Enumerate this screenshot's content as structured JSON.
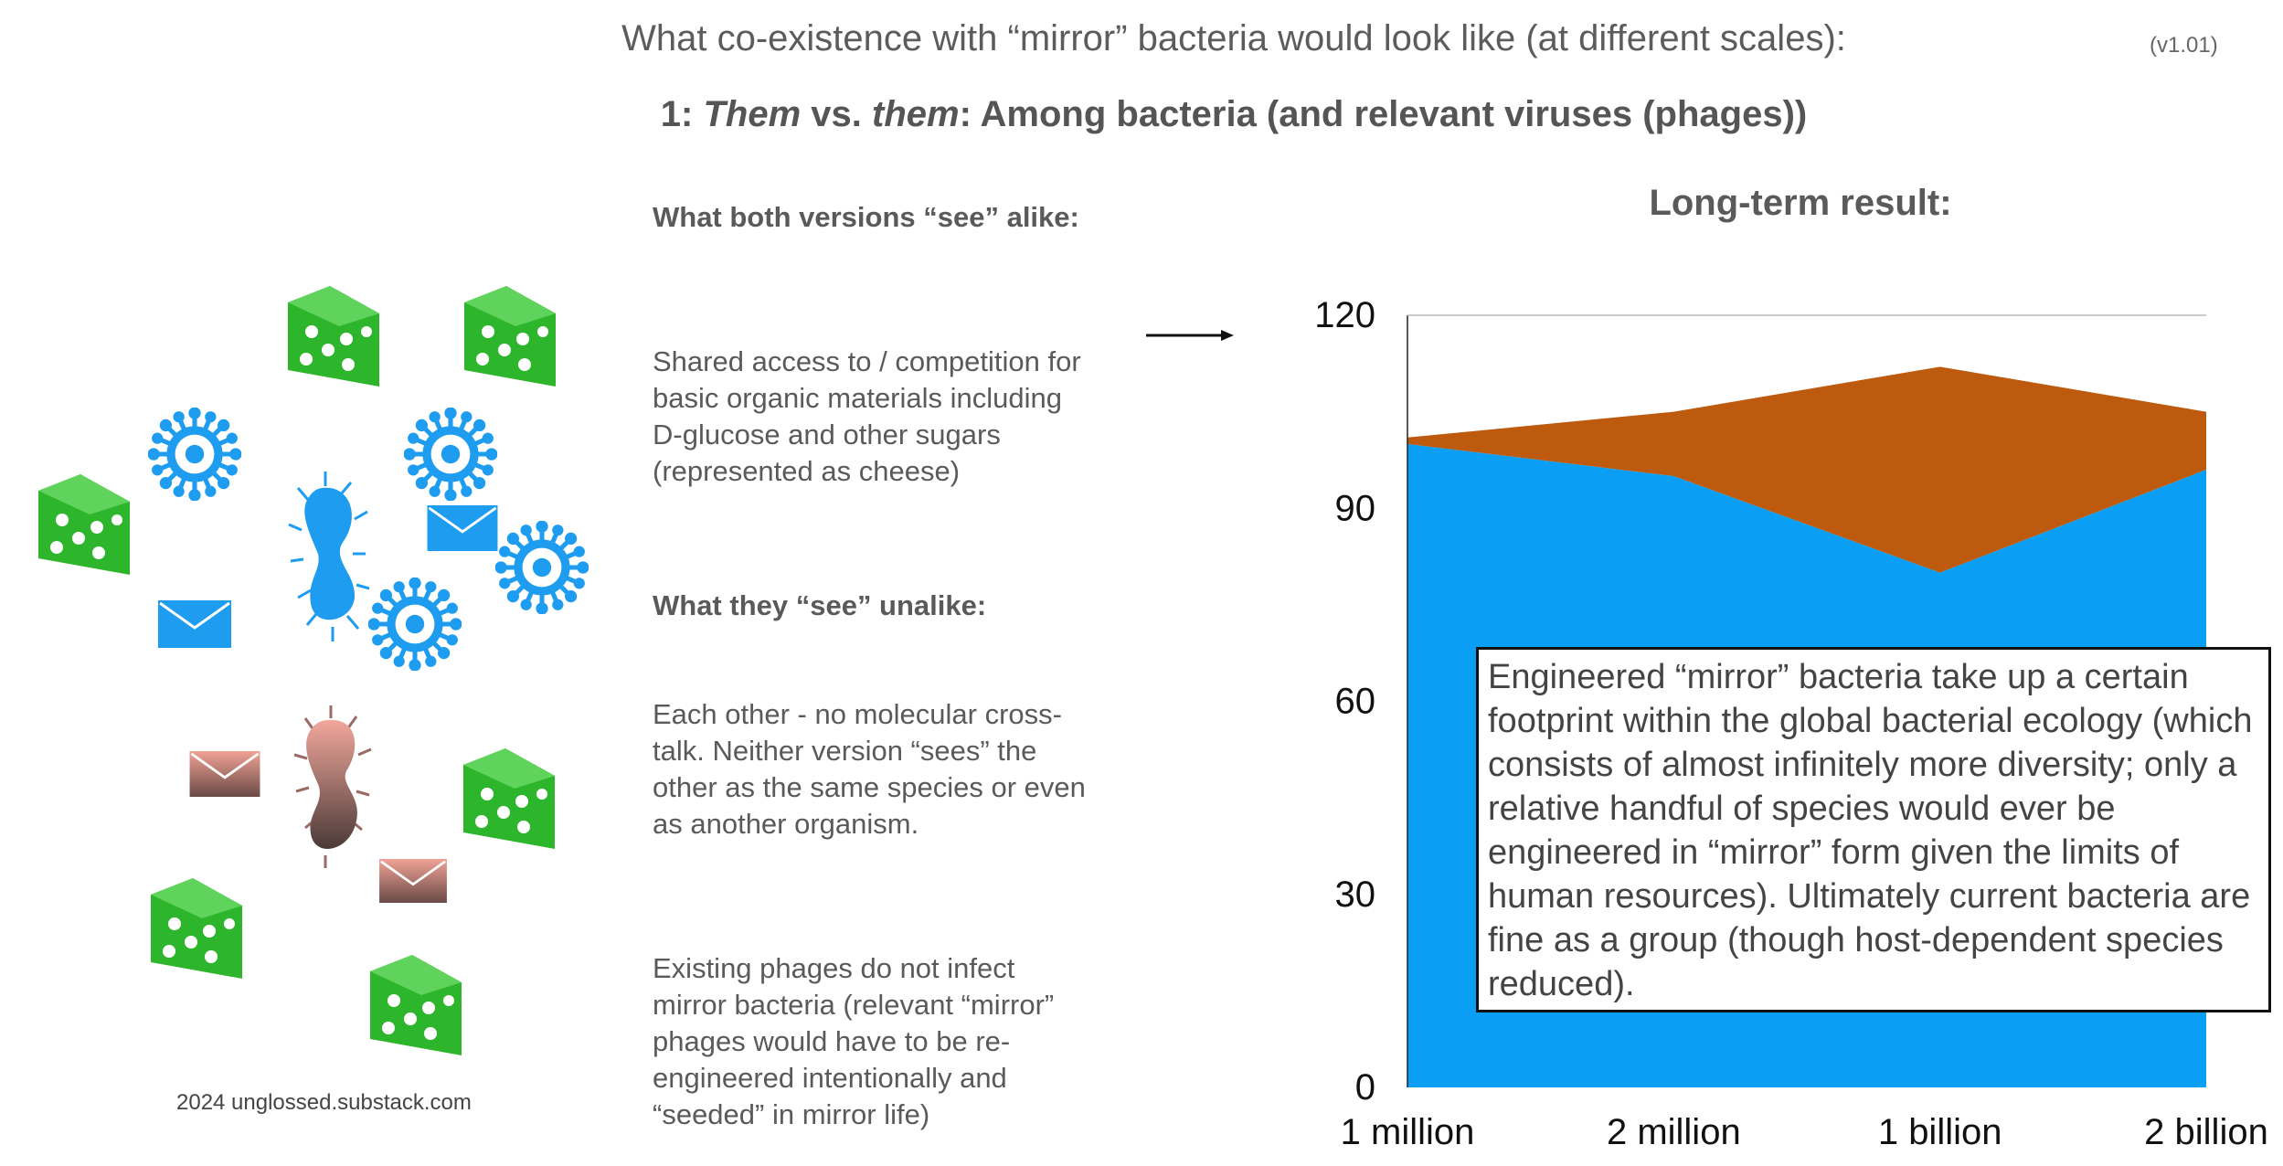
{
  "header": {
    "title": "What co-existence with “mirror” bacteria would look like (at different scales):",
    "version": "(v1.01)",
    "subtitle_prefix": "1: ",
    "subtitle_them1": "Them",
    "subtitle_vs": " vs. ",
    "subtitle_them2": "them",
    "subtitle_rest": ": Among bacteria (and relevant viruses (phages))"
  },
  "middle": {
    "alike_heading": "What both versions “see” alike:",
    "alike_text": "Shared access to / competition for basic organic materials including D-glucose and other sugars (represented as cheese)",
    "unalike_heading": "What they “see” unalike:",
    "unalike_text_1": "Each other - no molecular cross-talk. Neither version “sees” the other as the same species or even as another organism.",
    "unalike_text_2": "Existing phages do not infect mirror bacteria (relevant “mirror” phages would have to be re-engineered intentionally and “seeded” in mirror life)"
  },
  "credit": "2024 unglossed.substack.com",
  "illustration": {
    "icons": [
      "cheese-icon",
      "virus-icon",
      "bacterium-icon",
      "envelope-icon",
      "mirror-bacterium-icon",
      "mirror-envelope-icon",
      "arrow-icon"
    ],
    "colors": {
      "cheese": "#2db52b",
      "virus": "#1e9cf0",
      "bacterium": "#1e9cf0",
      "envelope": "#1e9cf0",
      "mirror_bacterium": "#e39a90",
      "mirror_envelope": "#e39a90"
    }
  },
  "chart_title": "Long-term result:",
  "annotation": "Engineered “mirror” bacteria take up a certain footprint within the global bacterial ecology (which consists of almost infinitely more diversity; only a relative handful of species would ever be engineered in “mirror” form given the limits of human resources). Ultimately current bacteria are fine as a group (though host-dependent species reduced).",
  "chart_data": {
    "type": "area",
    "stacked": true,
    "title": "Long-term result:",
    "categories": [
      "1 million",
      "2 million",
      "1 billion",
      "2 billion"
    ],
    "series": [
      {
        "color": "#0a9ff5",
        "values": [
          100,
          95,
          80,
          96
        ]
      },
      {
        "color": "#bd5a0e",
        "values": [
          1,
          10,
          32,
          9
        ]
      }
    ],
    "ylim": [
      0,
      120
    ],
    "yticks": [
      0,
      30,
      60,
      90,
      120
    ],
    "grid": "top line only",
    "legend": "none"
  }
}
